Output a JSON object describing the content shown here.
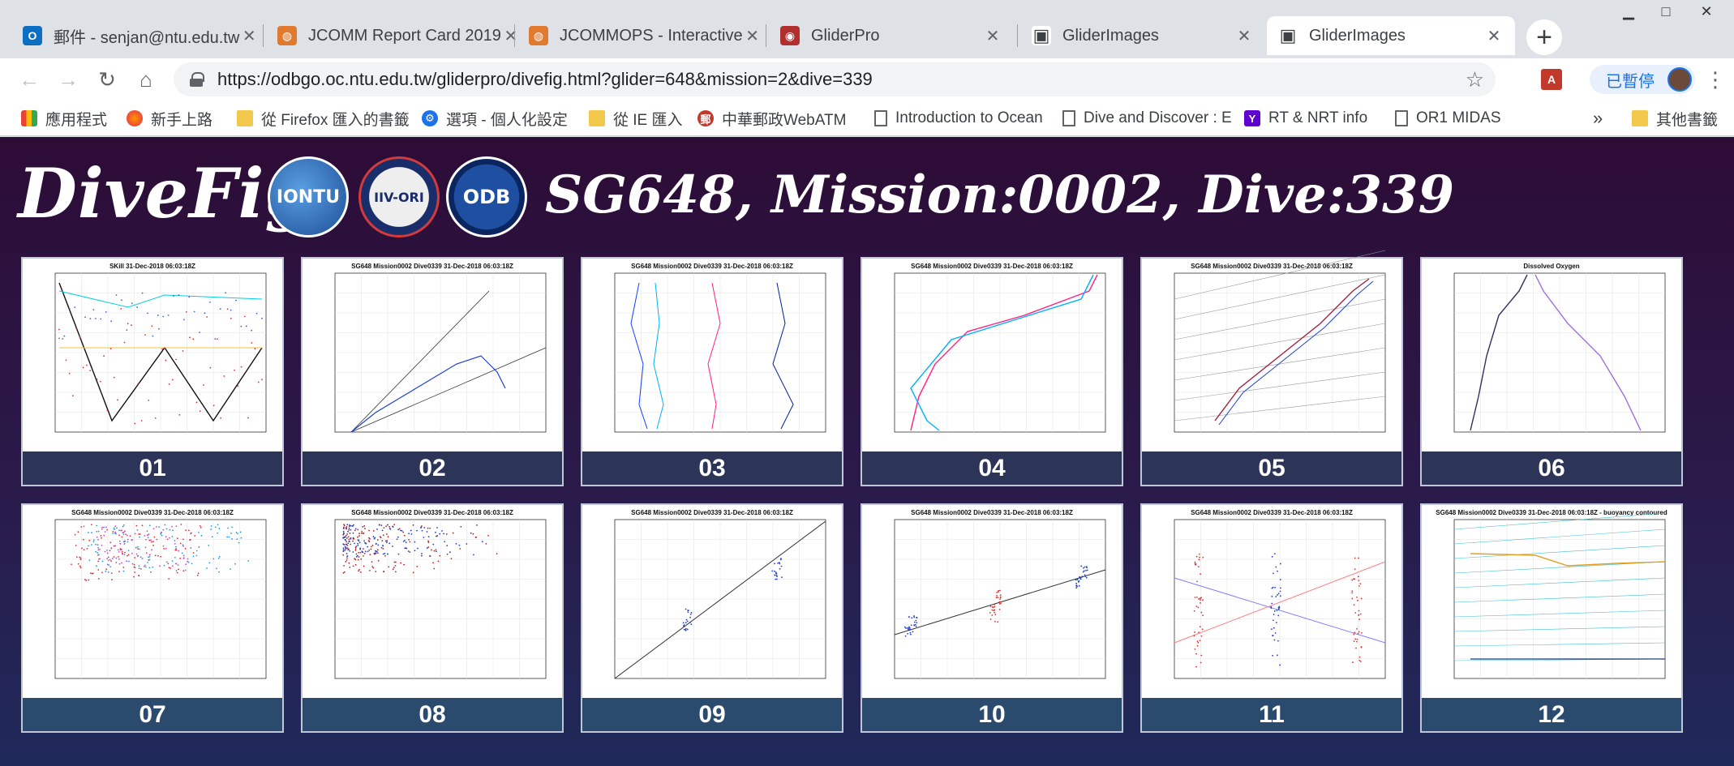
{
  "window_controls": {
    "minimize": "▁",
    "maximize": "□",
    "close": "✕"
  },
  "tabs": [
    {
      "title": "郵件 - senjan@ntu.edu.tw",
      "icon": "outlook-icon",
      "icon_color": "#0a6fc2",
      "icon_glyph": "O"
    },
    {
      "title": "JCOMM Report Card 2019",
      "icon": "globe-icon",
      "icon_color": "#e07a2f",
      "icon_glyph": "◍"
    },
    {
      "title": "JCOMMOPS - Interactive",
      "icon": "globe-icon",
      "icon_color": "#e07a2f",
      "icon_glyph": "◍"
    },
    {
      "title": "GliderPro",
      "icon": "gliderpro-icon",
      "icon_color": "#b03030",
      "icon_glyph": "◉"
    },
    {
      "title": "GliderImages",
      "icon": "image-icon",
      "icon_color": "#3c4043",
      "icon_glyph": "▣"
    },
    {
      "title": "GliderImages",
      "icon": "image-icon",
      "icon_color": "#3c4043",
      "icon_glyph": "▣"
    }
  ],
  "tab_close": "✕",
  "new_tab": "+",
  "toolbar": {
    "back": "←",
    "forward": "→",
    "reload": "↻",
    "home": "⌂",
    "url": "https://odbgo.oc.ntu.edu.tw/gliderpro/divefig.html?glider=648&mission=2&dive=339",
    "star": "☆",
    "pdf_ext": "A",
    "paused": "已暫停",
    "menu": "⋮"
  },
  "bookmarks": [
    {
      "label": "應用程式",
      "icon": "apps-icon",
      "kind": "apps"
    },
    {
      "label": "新手上路",
      "icon": "firefox-icon",
      "kind": "firefox"
    },
    {
      "label": "從 Firefox 匯入的書籤",
      "icon": "folder-icon",
      "kind": "folder"
    },
    {
      "label": "選項 - 個人化設定",
      "icon": "settings-icon",
      "kind": "gear"
    },
    {
      "label": "從 IE 匯入",
      "icon": "folder-icon",
      "kind": "folder"
    },
    {
      "label": "中華郵政WebATM",
      "icon": "post-icon",
      "kind": "post"
    },
    {
      "label": "Introduction to Ocean",
      "icon": "page-icon",
      "kind": "page"
    },
    {
      "label": "Dive and Discover : E",
      "icon": "page-icon",
      "kind": "page"
    },
    {
      "label": "RT & NRT info",
      "icon": "yahoo-icon",
      "kind": "yahoo"
    },
    {
      "label": "OR1 MIDAS",
      "icon": "page-icon",
      "kind": "page"
    },
    {
      "label": "»",
      "icon": "overflow-icon",
      "kind": "overflow"
    },
    {
      "label": "其他書籤",
      "icon": "folder-icon",
      "kind": "folder"
    }
  ],
  "page": {
    "logo_text": "DiveFig",
    "emblems": [
      "IONTU",
      "IIV-ORI",
      "ODB"
    ],
    "title": "SG648, Mission:0002, Dive:339"
  },
  "figures": [
    {
      "number": "01",
      "caption": "SKill 31-Dec-2018 06:03:18Z",
      "kind": "timeseries"
    },
    {
      "number": "02",
      "caption": "SG648 Mission0002 Dive0339 31-Dec-2018 06:03:18Z",
      "kind": "displacement"
    },
    {
      "number": "03",
      "caption": "SG648 Mission0002 Dive0339 31-Dec-2018 06:03:18Z",
      "kind": "velocity"
    },
    {
      "number": "04",
      "caption": "SG648 Mission0002 Dive0339 31-Dec-2018 06:03:18Z",
      "kind": "ts_profile"
    },
    {
      "number": "05",
      "caption": "SG648 Mission0002 Dive0339 31-Dec-2018 06:03:18Z",
      "kind": "ts_diagram"
    },
    {
      "number": "06",
      "caption": "Dissolved Oxygen",
      "kind": "oxygen"
    },
    {
      "number": "07",
      "caption": "SG648 Mission0002 Dive0339 31-Dec-2018 06:03:18Z",
      "kind": "backscatter"
    },
    {
      "number": "08",
      "caption": "SG648 Mission0002 Dive0339 31-Dec-2018 06:03:18Z",
      "kind": "fluorometer"
    },
    {
      "number": "09",
      "caption": "SG648 Mission0002 Dive0339 31-Dec-2018 06:03:18Z",
      "kind": "pitch"
    },
    {
      "number": "10",
      "caption": "SG648 Mission0002 Dive0339 31-Dec-2018 06:03:18Z",
      "kind": "roll"
    },
    {
      "number": "11",
      "caption": "SG648 Mission0002 Dive0339 31-Dec-2018 06:03:18Z",
      "kind": "turn"
    },
    {
      "number": "12",
      "caption": "SG648 Mission0002 Dive0339 31-Dec-2018 06:03:18Z - buoyancy contoured",
      "kind": "buoyancy"
    }
  ]
}
